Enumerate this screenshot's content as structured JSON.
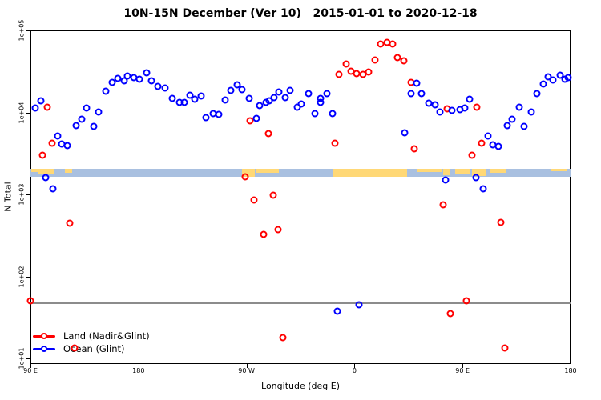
{
  "title": "10N-15N December (Ver 10)   2015-01-01 to 2020-12-18",
  "legend": {
    "items": [
      {
        "id": "land",
        "label": "Land (Nadir&Glint)",
        "color": "#ff0000"
      },
      {
        "id": "ocean",
        "label": "Ocean (Glint)",
        "color": "#0000ff"
      }
    ]
  },
  "chart_data": {
    "type": "scatter",
    "title": "10N-15N December (Ver 10)   2015-01-01 to 2020-12-18",
    "xlabel": "Longitude (deg E)",
    "ylabel": "N Total",
    "x_axis": {
      "range_deg": [
        90,
        540
      ],
      "ticks": [
        {
          "lon": 90,
          "label": "90 E"
        },
        {
          "lon": 180,
          "label": "180"
        },
        {
          "lon": 270,
          "label": "90 W"
        },
        {
          "lon": 360,
          "label": "0"
        },
        {
          "lon": 450,
          "label": "90 E"
        },
        {
          "lon": 540,
          "label": "180"
        }
      ]
    },
    "y_axis": {
      "scale": "log",
      "range": [
        10,
        100000
      ],
      "ticks": [
        {
          "value": 100000,
          "label": "1e+05"
        },
        {
          "value": 10000,
          "label": "1e+04"
        },
        {
          "value": 1000,
          "label": "1e+03"
        },
        {
          "value": 100,
          "label": "1e+02"
        },
        {
          "value": 10,
          "label": "1e+01"
        }
      ]
    },
    "reference_line": {
      "value": 47,
      "color": "#8c8c8c"
    },
    "land_ocean_strip": {
      "top_value": 2050,
      "bottom_value": 1640,
      "ocean_color": "#a9c0e0",
      "land_color": "#ffd876",
      "segments": [
        {
          "from": 91,
          "to": 97,
          "cover": 0.4
        },
        {
          "from": 97,
          "to": 110,
          "cover": 0.75
        },
        {
          "from": 119,
          "to": 125,
          "cover": 0.45
        },
        {
          "from": 266,
          "to": 277,
          "cover": 1.0
        },
        {
          "from": 278,
          "to": 297,
          "cover": 0.5
        },
        {
          "from": 342,
          "to": 404,
          "cover": 1.0
        },
        {
          "from": 412,
          "to": 433,
          "cover": 0.4
        },
        {
          "from": 434,
          "to": 440,
          "cover": 0.85
        },
        {
          "from": 444,
          "to": 456,
          "cover": 0.6
        },
        {
          "from": 458,
          "to": 470,
          "cover": 0.9
        },
        {
          "from": 473,
          "to": 486,
          "cover": 0.5
        },
        {
          "from": 524,
          "to": 537,
          "cover": 0.25
        }
      ]
    },
    "series": [
      {
        "id": "land",
        "name": "Land (Nadir&Glint)",
        "color": "#ff0000",
        "points": [
          [
            104,
            11600
          ],
          [
            108,
            4200
          ],
          [
            100,
            3000
          ],
          [
            123,
            445
          ],
          [
            90,
            50
          ],
          [
            127,
            13.5
          ],
          [
            273,
            7900
          ],
          [
            288,
            5500
          ],
          [
            269,
            1640
          ],
          [
            276,
            855
          ],
          [
            292,
            980
          ],
          [
            284,
            325
          ],
          [
            296,
            370
          ],
          [
            300,
            18
          ],
          [
            347,
            29000
          ],
          [
            353,
            39000
          ],
          [
            357,
            32000
          ],
          [
            362,
            29700
          ],
          [
            367,
            29000
          ],
          [
            372,
            31000
          ],
          [
            377,
            43500
          ],
          [
            382,
            68000
          ],
          [
            387,
            71000
          ],
          [
            392,
            68000
          ],
          [
            396,
            46500
          ],
          [
            401,
            42500
          ],
          [
            407,
            23200
          ],
          [
            344,
            4200
          ],
          [
            410,
            3600
          ],
          [
            434,
            745
          ],
          [
            437,
            11100
          ],
          [
            440,
            35
          ],
          [
            453,
            50
          ],
          [
            458,
            3000
          ],
          [
            462,
            11600
          ],
          [
            466,
            4200
          ],
          [
            482,
            455
          ],
          [
            485,
            13.5
          ]
        ]
      },
      {
        "id": "ocean",
        "name": "Ocean (Glint)",
        "color": "#0000ff",
        "points": [
          [
            94,
            11300
          ],
          [
            99,
            13900
          ],
          [
            103,
            1600
          ],
          [
            109,
            1180
          ],
          [
            113,
            5200
          ],
          [
            116,
            4100
          ],
          [
            121,
            3900
          ],
          [
            128,
            6900
          ],
          [
            133,
            8300
          ],
          [
            137,
            11300
          ],
          [
            143,
            6700
          ],
          [
            147,
            10100
          ],
          [
            153,
            18200
          ],
          [
            158,
            23200
          ],
          [
            163,
            26000
          ],
          [
            168,
            24300
          ],
          [
            171,
            27800
          ],
          [
            176,
            26600
          ],
          [
            181,
            25400
          ],
          [
            187,
            30400
          ],
          [
            191,
            24300
          ],
          [
            196,
            20700
          ],
          [
            202,
            19900
          ],
          [
            208,
            14800
          ],
          [
            214,
            13200
          ],
          [
            218,
            13200
          ],
          [
            223,
            16200
          ],
          [
            227,
            14500
          ],
          [
            232,
            15900
          ],
          [
            236,
            8650
          ],
          [
            242,
            9700
          ],
          [
            247,
            9500
          ],
          [
            252,
            14200
          ],
          [
            257,
            18500
          ],
          [
            262,
            21700
          ],
          [
            266,
            19000
          ],
          [
            272,
            14800
          ],
          [
            278,
            8450
          ],
          [
            281,
            12100
          ],
          [
            286,
            13200
          ],
          [
            289,
            13900
          ],
          [
            293,
            15100
          ],
          [
            297,
            17700
          ],
          [
            302,
            15100
          ],
          [
            306,
            18500
          ],
          [
            312,
            11600
          ],
          [
            316,
            12600
          ],
          [
            322,
            16900
          ],
          [
            327,
            9700
          ],
          [
            332,
            14800
          ],
          [
            332,
            13200
          ],
          [
            337,
            16900
          ],
          [
            342,
            9700
          ],
          [
            346,
            38
          ],
          [
            364,
            45
          ],
          [
            402,
            5600
          ],
          [
            407,
            16900
          ],
          [
            412,
            22700
          ],
          [
            416,
            16900
          ],
          [
            422,
            13000
          ],
          [
            427,
            12400
          ],
          [
            431,
            10100
          ],
          [
            436,
            1500
          ],
          [
            441,
            10600
          ],
          [
            448,
            10800
          ],
          [
            452,
            11300
          ],
          [
            456,
            14500
          ],
          [
            461,
            1600
          ],
          [
            467,
            1180
          ],
          [
            471,
            5200
          ],
          [
            475,
            4050
          ],
          [
            480,
            3850
          ],
          [
            487,
            6900
          ],
          [
            491,
            8300
          ],
          [
            497,
            11600
          ],
          [
            501,
            6800
          ],
          [
            507,
            10100
          ],
          [
            512,
            16900
          ],
          [
            517,
            22200
          ],
          [
            521,
            27200
          ],
          [
            525,
            24800
          ],
          [
            531,
            28400
          ],
          [
            535,
            25400
          ],
          [
            538,
            26600
          ]
        ]
      }
    ]
  }
}
